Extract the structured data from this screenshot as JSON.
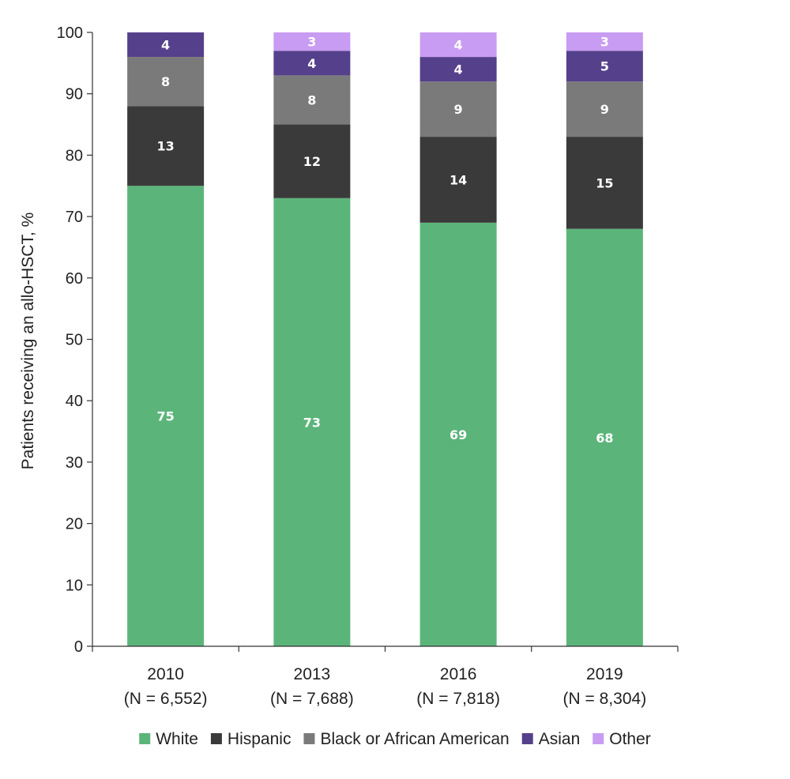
{
  "chart_data": {
    "type": "bar",
    "stacked": true,
    "title": "",
    "xlabel": "",
    "ylabel": "Patients receiving an allo-HSCT, %",
    "ylim": [
      0,
      100
    ],
    "yticks": [
      0,
      10,
      20,
      30,
      40,
      50,
      60,
      70,
      80,
      90,
      100
    ],
    "categories": [
      "2010",
      "2013",
      "2016",
      "2019"
    ],
    "category_sublabels": [
      "(N = 6,552)",
      "(N = 7,688)",
      "(N = 7,818)",
      "(N = 8,304)"
    ],
    "series": [
      {
        "name": "White",
        "color": "#5bb57a",
        "values": [
          75,
          73,
          69,
          68
        ]
      },
      {
        "name": "Hispanic",
        "color": "#3a3a3a",
        "values": [
          13,
          12,
          14,
          15
        ]
      },
      {
        "name": "Black or African American",
        "color": "#7a7a7a",
        "values": [
          8,
          8,
          9,
          9
        ]
      },
      {
        "name": "Asian",
        "color": "#55408c",
        "values": [
          4,
          4,
          4,
          5
        ]
      },
      {
        "name": "Other",
        "color": "#c89cf2",
        "values": [
          null,
          3,
          4,
          3
        ]
      }
    ],
    "legend_position": "bottom",
    "grid": false
  }
}
